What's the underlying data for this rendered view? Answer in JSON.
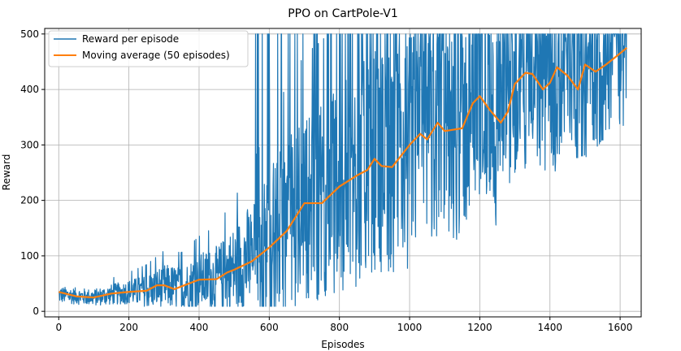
{
  "chart_data": {
    "type": "line",
    "title": "PPO on CartPole-V1",
    "xlabel": "Episodes",
    "ylabel": "Reward",
    "xlim": [
      -40,
      1660
    ],
    "ylim": [
      -10,
      510
    ],
    "xticks": [
      0,
      200,
      400,
      600,
      800,
      1000,
      1200,
      1400,
      1600
    ],
    "yticks": [
      0,
      100,
      200,
      300,
      400,
      500
    ],
    "grid": true,
    "legend_position": "top-left",
    "num_episodes": 1620,
    "series": [
      {
        "name": "Reward per episode",
        "color": "#1f77b4",
        "trend_x": [
          0,
          100,
          200,
          250,
          300,
          350,
          400,
          450,
          500,
          550,
          600,
          650,
          700,
          750,
          800,
          850,
          900,
          950,
          1000,
          1050,
          1100,
          1150,
          1200,
          1250,
          1300,
          1350,
          1400,
          1450,
          1500,
          1550,
          1619
        ],
        "trend_y": [
          30,
          25,
          35,
          36,
          45,
          42,
          55,
          58,
          75,
          100,
          120,
          150,
          190,
          200,
          220,
          240,
          275,
          260,
          290,
          330,
          325,
          330,
          385,
          340,
          410,
          430,
          405,
          440,
          430,
          450,
          475
        ],
        "noise_amplitude": [
          15,
          15,
          22,
          30,
          40,
          40,
          50,
          60,
          80,
          100,
          140,
          160,
          170,
          180,
          190,
          200,
          200,
          210,
          210,
          200,
          200,
          200,
          190,
          190,
          170,
          160,
          170,
          160,
          160,
          150,
          140
        ],
        "max_value": 500
      },
      {
        "name": "Moving average (50 episodes)",
        "color": "#ff7f0e",
        "x": [
          0,
          50,
          100,
          150,
          200,
          250,
          280,
          300,
          330,
          350,
          400,
          450,
          480,
          500,
          550,
          600,
          650,
          700,
          750,
          800,
          850,
          880,
          900,
          920,
          950,
          1000,
          1030,
          1050,
          1080,
          1100,
          1150,
          1180,
          1200,
          1230,
          1260,
          1280,
          1300,
          1330,
          1350,
          1380,
          1400,
          1420,
          1450,
          1480,
          1500,
          1530,
          1560,
          1590,
          1619
        ],
        "y": [
          35,
          27,
          25,
          32,
          35,
          37,
          47,
          47,
          40,
          45,
          57,
          58,
          70,
          75,
          90,
          115,
          145,
          195,
          195,
          225,
          245,
          255,
          275,
          262,
          260,
          300,
          320,
          310,
          340,
          325,
          330,
          375,
          388,
          362,
          340,
          360,
          410,
          430,
          428,
          400,
          412,
          440,
          425,
          400,
          445,
          432,
          445,
          460,
          475
        ]
      }
    ]
  }
}
